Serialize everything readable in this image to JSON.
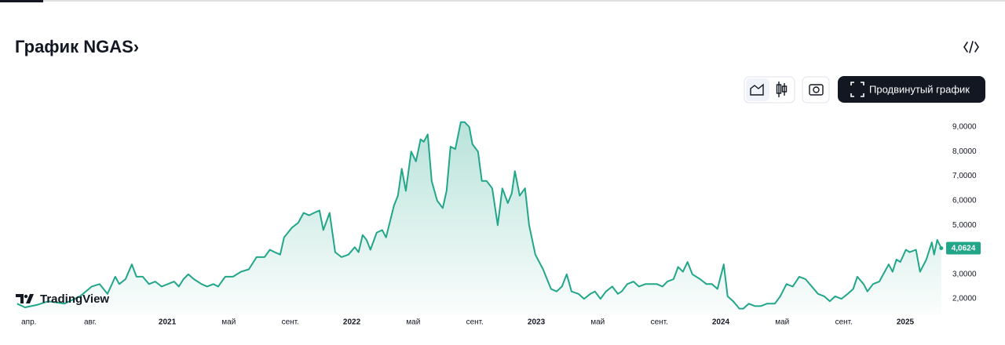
{
  "title": "График NGAS›",
  "buttons": {
    "advanced": "Продвинутый график"
  },
  "watermark": "TradingView",
  "chart_data": {
    "type": "area",
    "color": "#22a68a",
    "x": [
      2020.186,
      2020.229,
      2020.293,
      2020.356,
      2020.442,
      2020.527,
      2020.591,
      2020.633,
      2020.676,
      2020.718,
      2020.74,
      2020.774,
      2020.808,
      2020.833,
      2020.867,
      2020.901,
      2020.935,
      2020.969,
      2021.003,
      2021.037,
      2021.063,
      2021.088,
      2021.114,
      2021.144,
      2021.186,
      2021.216,
      2021.25,
      2021.276,
      2021.314,
      2021.356,
      2021.399,
      2021.442,
      2021.484,
      2021.527,
      2021.556,
      2021.582,
      2021.612,
      2021.633,
      2021.676,
      2021.71,
      2021.739,
      2021.769,
      2021.795,
      2021.825,
      2021.846,
      2021.88,
      2021.91,
      2021.944,
      2021.982,
      2022.016,
      2022.037,
      2022.059,
      2022.08,
      2022.101,
      2022.135,
      2022.165,
      2022.186,
      2022.229,
      2022.25,
      2022.271,
      2022.293,
      2022.322,
      2022.348,
      2022.373,
      2022.39,
      2022.412,
      2022.433,
      2022.463,
      2022.493,
      2022.514,
      2022.535,
      2022.561,
      2022.591,
      2022.612,
      2022.637,
      2022.654,
      2022.684,
      2022.705,
      2022.731,
      2022.761,
      2022.791,
      2022.816,
      2022.846,
      2022.867,
      2022.884,
      2022.91,
      2022.939,
      2022.961,
      2022.995,
      2023.037,
      2023.08,
      2023.11,
      2023.139,
      2023.165,
      2023.191,
      2023.229,
      2023.259,
      2023.293,
      2023.318,
      2023.348,
      2023.378,
      2023.412,
      2023.442,
      2023.463,
      2023.493,
      2023.527,
      2023.556,
      2023.591,
      2023.625,
      2023.654,
      2023.684,
      2023.71,
      2023.744,
      2023.769,
      2023.795,
      2023.82,
      2023.846,
      2023.888,
      2023.922,
      2023.952,
      2023.982,
      2024.016,
      2024.037,
      2024.067,
      2024.101,
      2024.122,
      2024.152,
      2024.186,
      2024.216,
      2024.25,
      2024.293,
      2024.322,
      2024.356,
      2024.39,
      2024.425,
      2024.459,
      2024.493,
      2024.527,
      2024.561,
      2024.591,
      2024.62,
      2024.654,
      2024.688,
      2024.718,
      2024.74,
      2024.774,
      2024.795,
      2024.825,
      2024.859,
      2024.888,
      2024.91,
      2024.931,
      2024.952,
      2024.973,
      2025.003,
      2025.024,
      2025.058,
      2025.08,
      2025.114,
      2025.144,
      2025.156,
      2025.173,
      2025.195
    ],
    "values": [
      1.8,
      1.65,
      1.75,
      1.9,
      1.8,
      2.1,
      2.5,
      2.6,
      2.2,
      2.9,
      2.6,
      2.8,
      3.4,
      2.9,
      2.9,
      2.6,
      2.7,
      2.5,
      2.6,
      2.7,
      2.5,
      2.8,
      3.0,
      2.8,
      2.6,
      2.5,
      2.6,
      2.5,
      2.9,
      2.9,
      3.1,
      3.2,
      3.7,
      3.7,
      4.0,
      3.9,
      3.8,
      4.5,
      4.9,
      5.1,
      5.5,
      5.4,
      5.5,
      5.6,
      4.8,
      5.5,
      3.9,
      3.7,
      3.8,
      4.1,
      3.9,
      4.6,
      4.4,
      4.0,
      4.7,
      4.8,
      4.5,
      5.8,
      6.2,
      7.3,
      6.4,
      8.0,
      7.6,
      8.5,
      8.4,
      8.7,
      6.8,
      6.0,
      5.7,
      6.4,
      8.2,
      8.1,
      9.2,
      9.2,
      9.0,
      8.3,
      8.0,
      6.8,
      6.8,
      6.5,
      5.0,
      6.5,
      5.9,
      6.3,
      7.2,
      6.2,
      6.5,
      5.0,
      3.8,
      3.2,
      2.4,
      2.3,
      2.5,
      3.0,
      2.3,
      2.2,
      2.0,
      2.2,
      2.3,
      2.0,
      2.3,
      2.5,
      2.2,
      2.3,
      2.6,
      2.7,
      2.5,
      2.6,
      2.6,
      2.6,
      2.5,
      2.7,
      2.8,
      3.3,
      3.1,
      3.5,
      3.0,
      2.8,
      2.6,
      2.6,
      2.4,
      3.4,
      2.1,
      1.9,
      1.6,
      1.6,
      1.8,
      1.7,
      1.7,
      1.8,
      1.8,
      2.1,
      2.6,
      2.5,
      2.9,
      2.8,
      2.5,
      2.2,
      2.1,
      1.9,
      2.1,
      2.0,
      2.2,
      2.4,
      2.9,
      2.6,
      2.3,
      2.6,
      2.7,
      3.1,
      3.4,
      3.1,
      3.6,
      3.5,
      4.0,
      3.9,
      4.0,
      3.1,
      3.6,
      4.3,
      3.8,
      4.4,
      4.0624
    ],
    "last_price": {
      "value": 4.0624,
      "label": "4,0624"
    },
    "xlim": [
      2020.17,
      2025.2
    ],
    "xticks": [
      {
        "value": 2020.25,
        "label": "апр."
      },
      {
        "value": 2020.583,
        "label": "авг."
      },
      2021,
      {
        "value": 2021.333,
        "label": "май"
      },
      {
        "value": 2021.667,
        "label": "сент."
      },
      2022,
      {
        "value": 2022.333,
        "label": "май"
      },
      {
        "value": 2022.667,
        "label": "сент."
      },
      2023,
      {
        "value": 2023.333,
        "label": "май"
      },
      {
        "value": 2023.667,
        "label": "сент."
      },
      2024,
      {
        "value": 2024.333,
        "label": "май"
      },
      {
        "value": 2024.667,
        "label": "сент."
      },
      2025
    ],
    "ylim": [
      1.35,
      9.6
    ],
    "yticks": [
      {
        "value": 2,
        "label": "2,0000"
      },
      {
        "value": 3,
        "label": "3,0000"
      },
      {
        "value": 4,
        "label": "4,0000"
      },
      {
        "value": 5,
        "label": "5,0000"
      },
      {
        "value": 6,
        "label": "6,0000"
      },
      {
        "value": 7,
        "label": "7,0000"
      },
      {
        "value": 8,
        "label": "8,0000"
      },
      {
        "value": 9,
        "label": "9,0000"
      }
    ],
    "grid": false
  }
}
